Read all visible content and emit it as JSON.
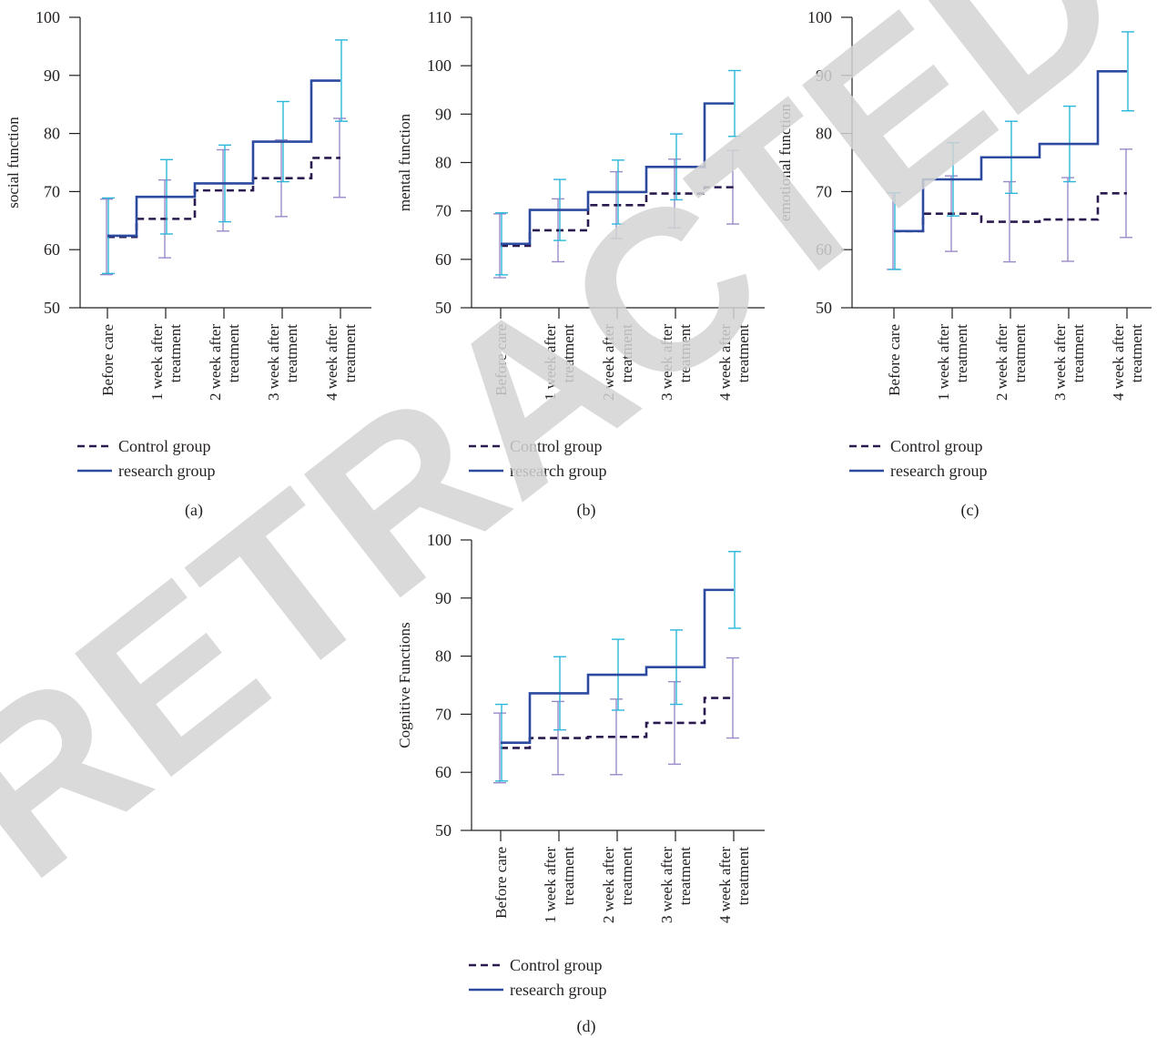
{
  "watermark": "RETRACTED",
  "chart_data": [
    {
      "panel": "(a)",
      "type": "line",
      "ylabel": "social function",
      "ylim": [
        50,
        100
      ],
      "yticks": [
        50,
        60,
        70,
        80,
        90,
        100
      ],
      "categories": [
        "Before care",
        "1 week after treatment",
        "2 week after treatment",
        "3 week after treatment",
        "4 week after treatment"
      ],
      "categories_lines": [
        [
          "Before care"
        ],
        [
          "1 week after",
          "treatment"
        ],
        [
          "2 week after",
          "treatment"
        ],
        [
          "3 week after",
          "treatment"
        ],
        [
          "4 week after",
          "treatment"
        ]
      ],
      "step": true,
      "series": [
        {
          "name": "Control group",
          "values": [
            62.2,
            65.3,
            70.2,
            72.3,
            75.8
          ],
          "error": [
            6.5,
            6.7,
            7.0,
            6.6,
            6.8
          ],
          "color": "#2b1a4f",
          "error_color": "#9b8ac9",
          "dashed": true
        },
        {
          "name": "research group",
          "values": [
            62.4,
            69.1,
            71.4,
            78.6,
            89.1
          ],
          "error": [
            6.5,
            6.4,
            6.6,
            6.9,
            7.0
          ],
          "color": "#2b4aa0",
          "error_color": "#2cb7d9",
          "dashed": false
        }
      ],
      "legend": [
        "Control group",
        "research group"
      ]
    },
    {
      "panel": "(b)",
      "type": "line",
      "ylabel": "mental function",
      "ylim": [
        50,
        110
      ],
      "yticks": [
        50,
        60,
        70,
        80,
        90,
        100,
        110
      ],
      "categories": [
        "Before care",
        "1 week after treatment",
        "2 week after treatment",
        "3 week after treatment",
        "4 week after treatment"
      ],
      "categories_lines": [
        [
          "Before care"
        ],
        [
          "1 week after",
          "treatment"
        ],
        [
          "2 week after",
          "treatment"
        ],
        [
          "3 week after",
          "treatment"
        ],
        [
          "4 week after",
          "treatment"
        ]
      ],
      "step": true,
      "series": [
        {
          "name": "Control group",
          "values": [
            62.8,
            66.0,
            71.2,
            73.6,
            74.9
          ],
          "error": [
            6.6,
            6.5,
            6.9,
            7.1,
            7.6
          ],
          "color": "#2b1a4f",
          "error_color": "#9b8ac9",
          "dashed": true
        },
        {
          "name": "research group",
          "values": [
            63.2,
            70.2,
            73.9,
            79.1,
            92.2
          ],
          "error": [
            6.4,
            6.3,
            6.6,
            6.8,
            6.8
          ],
          "color": "#2b4aa0",
          "error_color": "#2cb7d9",
          "dashed": false
        }
      ],
      "legend": [
        "Control group",
        "research group"
      ]
    },
    {
      "panel": "(c)",
      "type": "line",
      "ylabel": "emotional function",
      "ylim": [
        50,
        100
      ],
      "yticks": [
        50,
        60,
        70,
        80,
        90,
        100
      ],
      "categories": [
        "Before care",
        "1 week after treatment",
        "2 week after treatment",
        "3 week after treatment",
        "4 week after treatment"
      ],
      "categories_lines": [
        [
          "Before care"
        ],
        [
          "1 week after",
          "treatment"
        ],
        [
          "2 week after",
          "treatment"
        ],
        [
          "3 week after",
          "treatment"
        ],
        [
          "4 week after",
          "treatment"
        ]
      ],
      "step": true,
      "series": [
        {
          "name": "Control group",
          "values": [
            63.2,
            66.2,
            64.8,
            65.2,
            69.7
          ],
          "error": [
            6.6,
            6.5,
            6.9,
            7.2,
            7.6
          ],
          "color": "#2b1a4f",
          "error_color": "#9b8ac9",
          "dashed": true
        },
        {
          "name": "research group",
          "values": [
            63.2,
            72.1,
            75.9,
            78.2,
            90.7
          ],
          "error": [
            6.6,
            6.3,
            6.2,
            6.5,
            6.8
          ],
          "color": "#2b4aa0",
          "error_color": "#2cb7d9",
          "dashed": false
        }
      ],
      "legend": [
        "Control group",
        "research group"
      ]
    },
    {
      "panel": "(d)",
      "type": "line",
      "ylabel": "Cognitive Functions",
      "ylim": [
        50,
        100
      ],
      "yticks": [
        50,
        60,
        70,
        80,
        90,
        100
      ],
      "categories": [
        "Before care",
        "1 week after treatment",
        "2 week after treatment",
        "3 week after treatment",
        "4 week after treatment"
      ],
      "categories_lines": [
        [
          "Before care"
        ],
        [
          "1 week after",
          "treatment"
        ],
        [
          "2 week after",
          "treatment"
        ],
        [
          "3 week after",
          "treatment"
        ],
        [
          "4 week after",
          "treatment"
        ]
      ],
      "step": true,
      "series": [
        {
          "name": "Control group",
          "values": [
            64.2,
            65.9,
            66.1,
            68.5,
            72.8
          ],
          "error": [
            6.0,
            6.3,
            6.5,
            7.1,
            6.9
          ],
          "color": "#2b1a4f",
          "error_color": "#9b8ac9",
          "dashed": true
        },
        {
          "name": "research group",
          "values": [
            65.1,
            73.6,
            76.8,
            78.1,
            91.4
          ],
          "error": [
            6.6,
            6.3,
            6.1,
            6.4,
            6.6
          ],
          "color": "#2b4aa0",
          "error_color": "#2cb7d9",
          "dashed": false
        }
      ],
      "legend": [
        "Control group",
        "research group"
      ]
    }
  ]
}
